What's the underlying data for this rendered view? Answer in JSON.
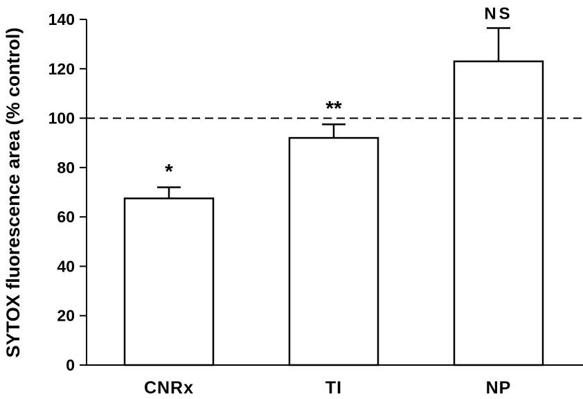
{
  "chart_data": {
    "type": "bar",
    "categories": [
      "CNRx",
      "TI",
      "NP"
    ],
    "values": [
      67.5,
      92,
      123
    ],
    "error_bars": [
      4.5,
      5.5,
      13.5
    ],
    "annotations": [
      "*",
      "**",
      "NS"
    ],
    "reference_line": 100,
    "title": "",
    "xlabel": "",
    "ylabel": "SYTOX fluorescence area (% control)",
    "ylim": [
      0,
      140
    ],
    "yticks": [
      0,
      20,
      40,
      60,
      80,
      100,
      120,
      140
    ],
    "grid": false,
    "legend": "none",
    "bar_color": "#ffffff",
    "line_color": "#000000"
  }
}
